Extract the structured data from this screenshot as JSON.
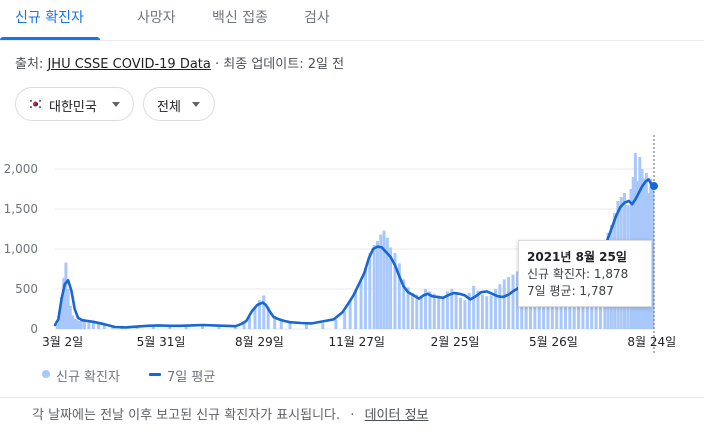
{
  "tabs": [
    {
      "label": "신규 확진자",
      "active": true
    },
    {
      "label": "사망자",
      "active": false
    },
    {
      "label": "백신 접종",
      "active": false
    },
    {
      "label": "검사",
      "active": false
    }
  ],
  "source": {
    "prefix": "출처:",
    "link_text": "JHU CSSE COVID-19 Data",
    "separator": "·",
    "updated": "최종 업데이트: 2일 전"
  },
  "filters": {
    "region": {
      "label": "대한민국",
      "icon": "south-korea-flag-icon"
    },
    "period": {
      "label": "전체"
    }
  },
  "colors": {
    "accent": "#1a73e8",
    "bars": "#a8c7fa",
    "avg_line": "#1967d2",
    "grid": "#e8eaed"
  },
  "tooltip": {
    "date": "2021년 8월 25일",
    "cases_line": "신규 확진자: 1,878",
    "avg_line": "7일 평균: 1,787"
  },
  "legend": {
    "cases": "신규 확진자",
    "avg": "7일 평균"
  },
  "footer": {
    "text": "각 날짜에는 전날 이후 보고된 신규 확진자가 표시됩니다.",
    "separator": "·",
    "link": "데이터 정보"
  },
  "chart_data": {
    "type": "bar",
    "ylim": [
      0,
      2250
    ],
    "y_ticks": [
      0,
      500,
      1000,
      1500,
      2000
    ],
    "y_tick_labels": [
      "0",
      "500",
      "1,000",
      "1,500",
      "2,000"
    ],
    "x_tick_labels": [
      "3월 2일",
      "5월 31일",
      "8월 29일",
      "11월 27일",
      "2월 25일",
      "5월 26일",
      "8월 24일"
    ],
    "x_tick_days": [
      42,
      132,
      222,
      311,
      401,
      491,
      581
    ],
    "day_range": [
      35,
      583
    ],
    "grid": true,
    "series": [
      {
        "name": "7일 평균",
        "style": "line",
        "x": [
          35,
          38,
          41,
          44,
          47,
          50,
          53,
          56,
          60,
          65,
          70,
          80,
          90,
          100,
          110,
          120,
          130,
          140,
          150,
          160,
          170,
          180,
          190,
          200,
          205,
          210,
          215,
          220,
          225,
          228,
          231,
          235,
          240,
          245,
          250,
          260,
          270,
          280,
          290,
          298,
          303,
          308,
          313,
          318,
          322,
          326,
          330,
          334,
          338,
          342,
          346,
          350,
          354,
          358,
          362,
          368,
          372,
          376,
          380,
          385,
          390,
          396,
          400,
          405,
          410,
          415,
          420,
          425,
          430,
          435,
          440,
          445,
          450,
          455,
          460,
          465,
          470,
          475,
          480,
          485,
          490,
          495,
          500,
          505,
          510,
          515,
          520,
          525,
          530,
          535,
          540,
          544,
          548,
          552,
          556,
          560,
          563,
          566,
          569,
          572,
          575,
          578,
          581,
          583
        ],
        "values": [
          50,
          120,
          380,
          560,
          610,
          480,
          250,
          140,
          110,
          100,
          90,
          60,
          25,
          20,
          30,
          40,
          45,
          40,
          40,
          45,
          50,
          45,
          40,
          35,
          60,
          100,
          220,
          300,
          330,
          300,
          230,
          150,
          120,
          100,
          85,
          75,
          70,
          95,
          120,
          210,
          310,
          420,
          560,
          700,
          880,
          1000,
          1030,
          1020,
          960,
          900,
          800,
          660,
          530,
          460,
          430,
          380,
          420,
          440,
          410,
          400,
          390,
          430,
          450,
          440,
          420,
          370,
          410,
          460,
          470,
          440,
          410,
          400,
          430,
          480,
          520,
          560,
          590,
          620,
          610,
          640,
          630,
          620,
          640,
          650,
          660,
          640,
          650,
          680,
          720,
          900,
          1100,
          1250,
          1400,
          1520,
          1580,
          1600,
          1560,
          1620,
          1700,
          1780,
          1840,
          1870,
          1800,
          1787
        ]
      },
      {
        "name": "신규 확진자",
        "style": "bar",
        "x": [
          37,
          39,
          41,
          43,
          45,
          47,
          49,
          51,
          53,
          55,
          57,
          59,
          62,
          66,
          70,
          75,
          80,
          88,
          96,
          110,
          125,
          140,
          155,
          170,
          185,
          200,
          208,
          213,
          218,
          222,
          226,
          230,
          236,
          242,
          250,
          265,
          280,
          292,
          300,
          305,
          310,
          315,
          319,
          323,
          327,
          330,
          333,
          336,
          339,
          342,
          346,
          350,
          354,
          358,
          362,
          366,
          370,
          374,
          378,
          382,
          386,
          390,
          394,
          398,
          402,
          406,
          410,
          414,
          418,
          422,
          426,
          430,
          434,
          438,
          442,
          446,
          450,
          454,
          458,
          462,
          466,
          470,
          474,
          478,
          482,
          486,
          490,
          494,
          498,
          502,
          506,
          510,
          514,
          518,
          522,
          526,
          530,
          534,
          538,
          541,
          544,
          547,
          550,
          553,
          556,
          559,
          562,
          564,
          566,
          568,
          570,
          572,
          574,
          576,
          578,
          580,
          582
        ],
        "values": [
          60,
          150,
          400,
          640,
          830,
          500,
          290,
          170,
          130,
          120,
          100,
          110,
          100,
          90,
          100,
          80,
          70,
          40,
          30,
          20,
          30,
          50,
          40,
          40,
          50,
          40,
          80,
          150,
          280,
          360,
          420,
          280,
          160,
          120,
          90,
          80,
          70,
          120,
          220,
          350,
          470,
          600,
          760,
          950,
          1050,
          1100,
          1180,
          1230,
          1140,
          1020,
          950,
          820,
          620,
          520,
          450,
          430,
          390,
          500,
          470,
          440,
          420,
          380,
          470,
          500,
          460,
          390,
          360,
          450,
          540,
          480,
          430,
          410,
          420,
          500,
          560,
          620,
          650,
          680,
          720,
          780,
          690,
          650,
          640,
          700,
          640,
          620,
          660,
          690,
          720,
          700,
          660,
          700,
          760,
          790,
          800,
          850,
          830,
          900,
          1050,
          1200,
          1300,
          1450,
          1600,
          1650,
          1700,
          1550,
          1750,
          1900,
          2200,
          1850,
          2150,
          2000,
          1880,
          1950,
          1700,
          1878,
          1750
        ]
      }
    ]
  }
}
